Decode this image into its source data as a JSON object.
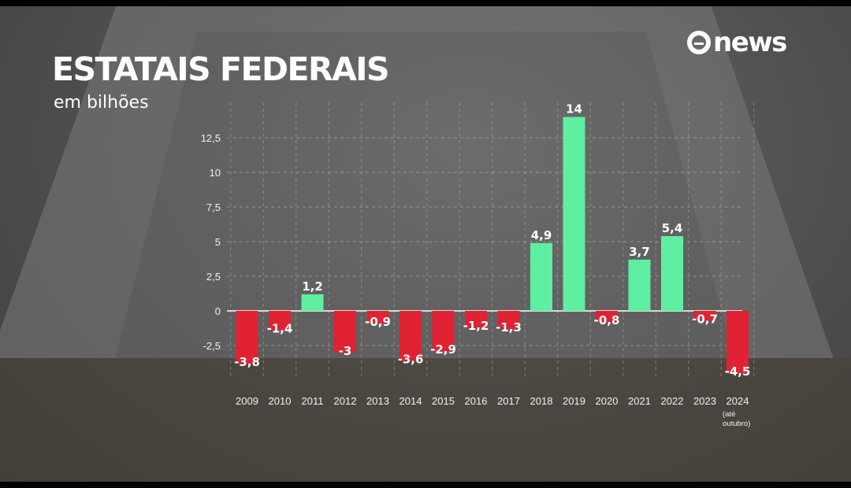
{
  "header": {
    "title": "ESTATAIS FEDERAIS",
    "subtitle": "em bilhões",
    "logo_text": "news"
  },
  "colors": {
    "positive": "#5ef0a0",
    "negative": "#e02232",
    "grid": "#bdbdbd",
    "text": "#ffffff"
  },
  "chart_data": {
    "type": "bar",
    "title": "ESTATAIS FEDERAIS",
    "subtitle": "em bilhões",
    "categories": [
      "2009",
      "2010",
      "2011",
      "2012",
      "2013",
      "2014",
      "2015",
      "2016",
      "2017",
      "2018",
      "2019",
      "2020",
      "2021",
      "2022",
      "2023",
      "2024"
    ],
    "category_notes": {
      "2024": [
        "(até",
        "outubro)"
      ]
    },
    "values": [
      -3.8,
      -1.4,
      1.2,
      -3,
      -0.9,
      -3.6,
      -2.9,
      -1.2,
      -1.3,
      4.9,
      14,
      -0.8,
      3.7,
      5.4,
      -0.7,
      -4.5
    ],
    "value_labels": [
      "-3,8",
      "-1,4",
      "1,2",
      "-3",
      "-0,9",
      "-3,6",
      "-2,9",
      "-1,2",
      "-1,3",
      "4,9",
      "14",
      "-0,8",
      "3,7",
      "5,4",
      "-0,7",
      "-4,5"
    ],
    "yticks": [
      -2.5,
      0,
      2.5,
      5,
      7.5,
      10,
      12.5
    ],
    "ytick_labels": [
      "-2,5",
      "0",
      "2,5",
      "5",
      "7,5",
      "10",
      "12,5"
    ],
    "ylim": [
      -5,
      15
    ],
    "grid": true,
    "xlabel": "",
    "ylabel": ""
  }
}
